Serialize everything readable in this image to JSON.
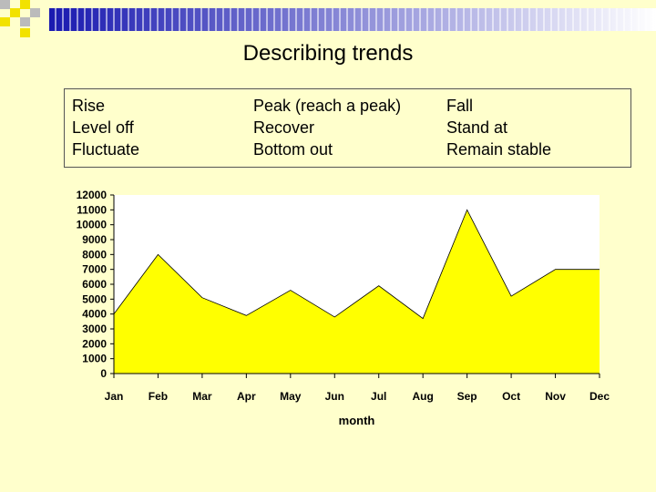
{
  "slide": {
    "title": "Describing trends",
    "colors": {
      "background": "#FFFFCC",
      "bar_start": "#1A1AB0",
      "bar_end": "#FFFFFF",
      "deco_yellow": "#F2E200",
      "deco_grey": "#BBBBBB"
    }
  },
  "terms": [
    [
      "Rise",
      "Peak (reach a peak)",
      "Fall"
    ],
    [
      "Level off",
      "Recover",
      "Stand at"
    ],
    [
      "Fluctuate",
      "Bottom out",
      "Remain stable"
    ]
  ],
  "chart_data": {
    "type": "area",
    "categories": [
      "Jan",
      "Feb",
      "Mar",
      "Apr",
      "May",
      "Jun",
      "Jul",
      "Aug",
      "Sep",
      "Oct",
      "Nov",
      "Dec"
    ],
    "series": [
      {
        "values": [
          4000,
          8000,
          5100,
          3900,
          5600,
          3800,
          5900,
          3700,
          11000,
          5200,
          7000,
          7000
        ]
      }
    ],
    "ylim": [
      0,
      12000
    ],
    "yticks": [
      "0",
      "1000",
      "2000",
      "3000",
      "4000",
      "5000",
      "6000",
      "7000",
      "8000",
      "9000",
      "10000",
      "11000",
      "12000"
    ],
    "xlabel": "month",
    "ylabel": "",
    "fill_color": "#FFFF00",
    "plot_background": "#FFFFFF",
    "grid": false
  }
}
